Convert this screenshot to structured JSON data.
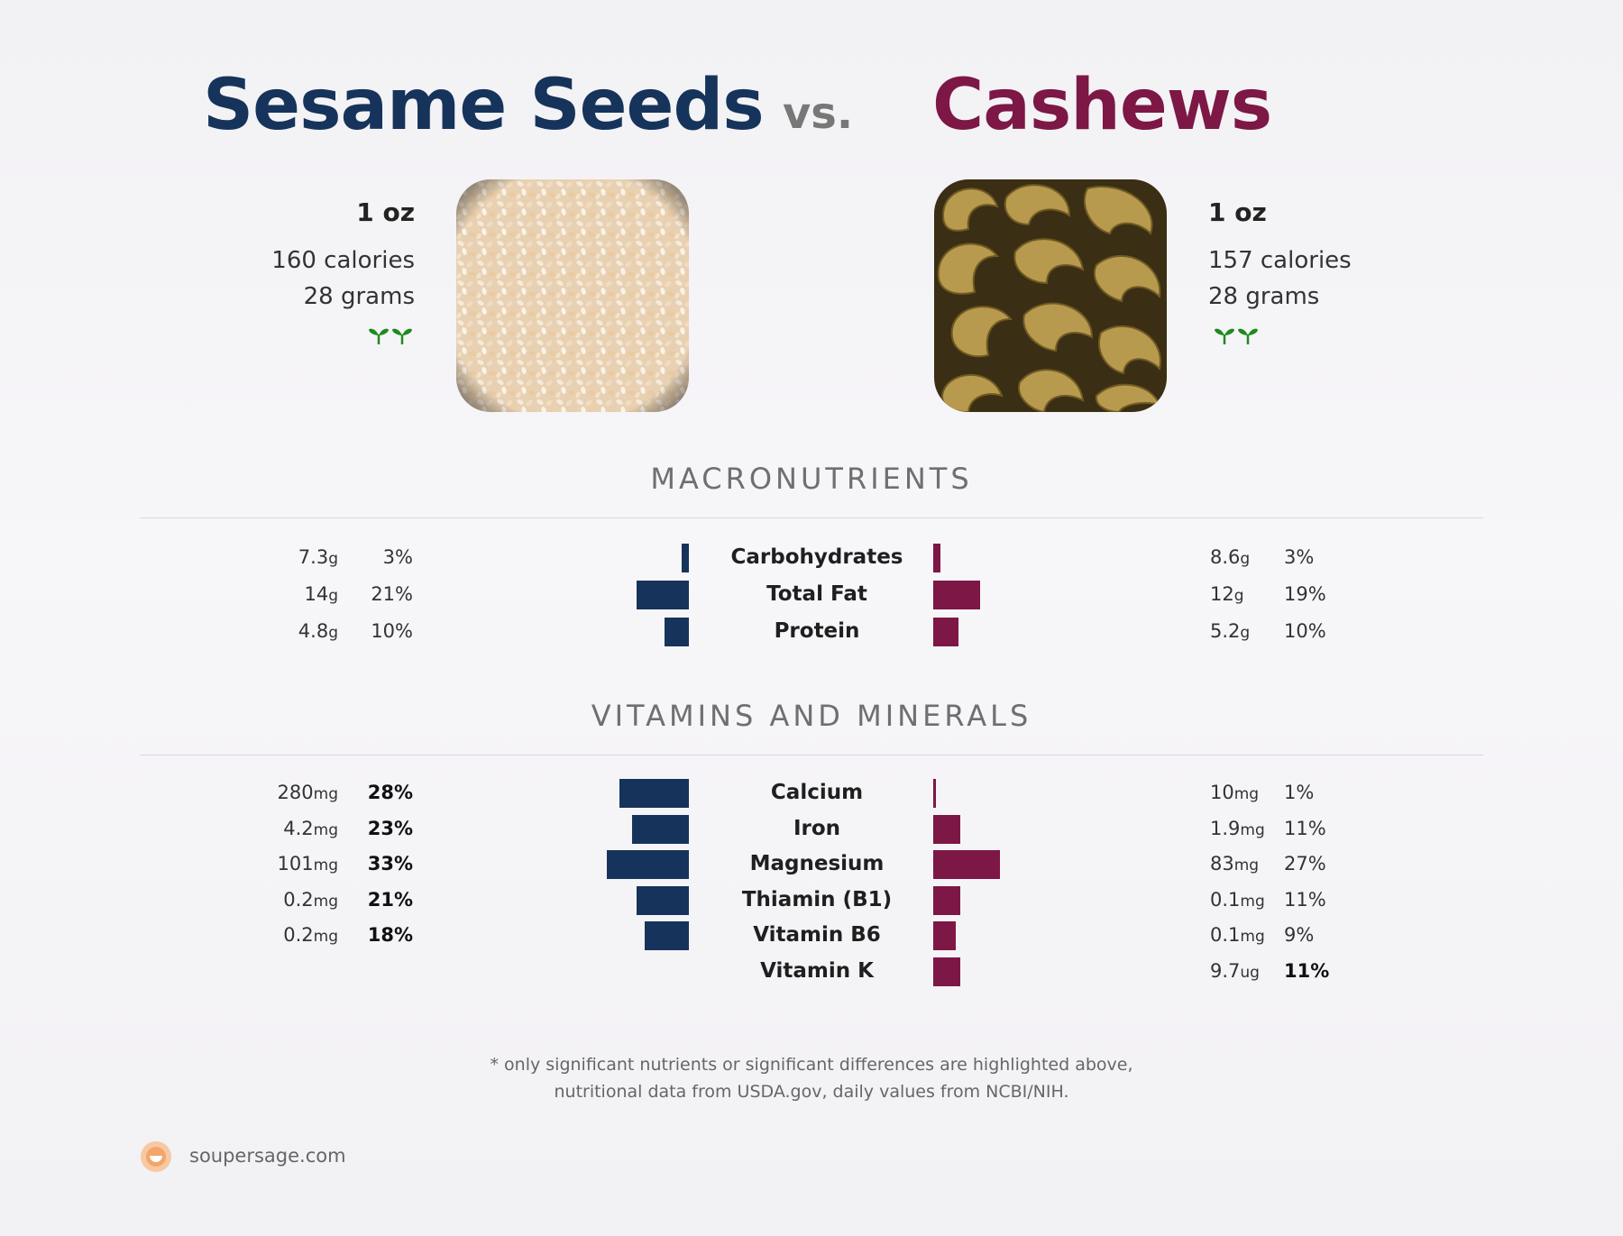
{
  "colors": {
    "left": "#16345b",
    "right": "#7d1746",
    "leaf": "#1f8a1f",
    "logo": "#f3a56a"
  },
  "header": {
    "left_title": "Sesame Seeds",
    "vs": "vs.",
    "right_title": "Cashews"
  },
  "left_food": {
    "serving": "1 oz",
    "calories": "160 calories",
    "grams": "28 grams",
    "image": "sesame-seeds-photo",
    "icon": "vegan-sprout-icon"
  },
  "right_food": {
    "serving": "1 oz",
    "calories": "157 calories",
    "grams": "28 grams",
    "image": "cashews-photo",
    "icon": "vegan-sprout-icon"
  },
  "sections": {
    "macros": "MACRONUTRIENTS",
    "vitamins": "VITAMINS AND MINERALS"
  },
  "chart_data": {
    "type": "bar",
    "orientation": "horizontal-diverging",
    "value_measure": "% daily value",
    "series": [
      {
        "name": "Sesame Seeds",
        "color": "#16345b"
      },
      {
        "name": "Cashews",
        "color": "#7d1746"
      }
    ],
    "macronutrients": [
      {
        "label": "Carbohydrates",
        "left_amount": "7.3",
        "left_unit": "g",
        "left_pct": 3,
        "right_amount": "8.6",
        "right_unit": "g",
        "right_pct": 3
      },
      {
        "label": "Total Fat",
        "left_amount": "14",
        "left_unit": "g",
        "left_pct": 21,
        "right_amount": "12",
        "right_unit": "g",
        "right_pct": 19
      },
      {
        "label": "Protein",
        "left_amount": "4.8",
        "left_unit": "g",
        "left_pct": 10,
        "right_amount": "5.2",
        "right_unit": "g",
        "right_pct": 10
      }
    ],
    "vitamins_minerals": [
      {
        "label": "Calcium",
        "left_amount": "280",
        "left_unit": "mg",
        "left_pct": 28,
        "left_bold": true,
        "right_amount": "10",
        "right_unit": "mg",
        "right_pct": 1
      },
      {
        "label": "Iron",
        "left_amount": "4.2",
        "left_unit": "mg",
        "left_pct": 23,
        "left_bold": true,
        "right_amount": "1.9",
        "right_unit": "mg",
        "right_pct": 11
      },
      {
        "label": "Magnesium",
        "left_amount": "101",
        "left_unit": "mg",
        "left_pct": 33,
        "left_bold": true,
        "right_amount": "83",
        "right_unit": "mg",
        "right_pct": 27
      },
      {
        "label": "Thiamin (B1)",
        "left_amount": "0.2",
        "left_unit": "mg",
        "left_pct": 21,
        "left_bold": true,
        "right_amount": "0.1",
        "right_unit": "mg",
        "right_pct": 11
      },
      {
        "label": "Vitamin B6",
        "left_amount": "0.2",
        "left_unit": "mg",
        "left_pct": 18,
        "left_bold": true,
        "right_amount": "0.1",
        "right_unit": "mg",
        "right_pct": 9
      },
      {
        "label": "Vitamin K",
        "right_amount": "9.7",
        "right_unit": "ug",
        "right_pct": 11,
        "right_bold": true
      }
    ]
  },
  "footnote": {
    "line1": "* only significant nutrients or significant differences are highlighted above,",
    "line2": "nutritional data from USDA.gov, daily values from NCBI/NIH."
  },
  "brand": {
    "site": "soupersage.com",
    "icon": "soupersage-logo-icon"
  }
}
